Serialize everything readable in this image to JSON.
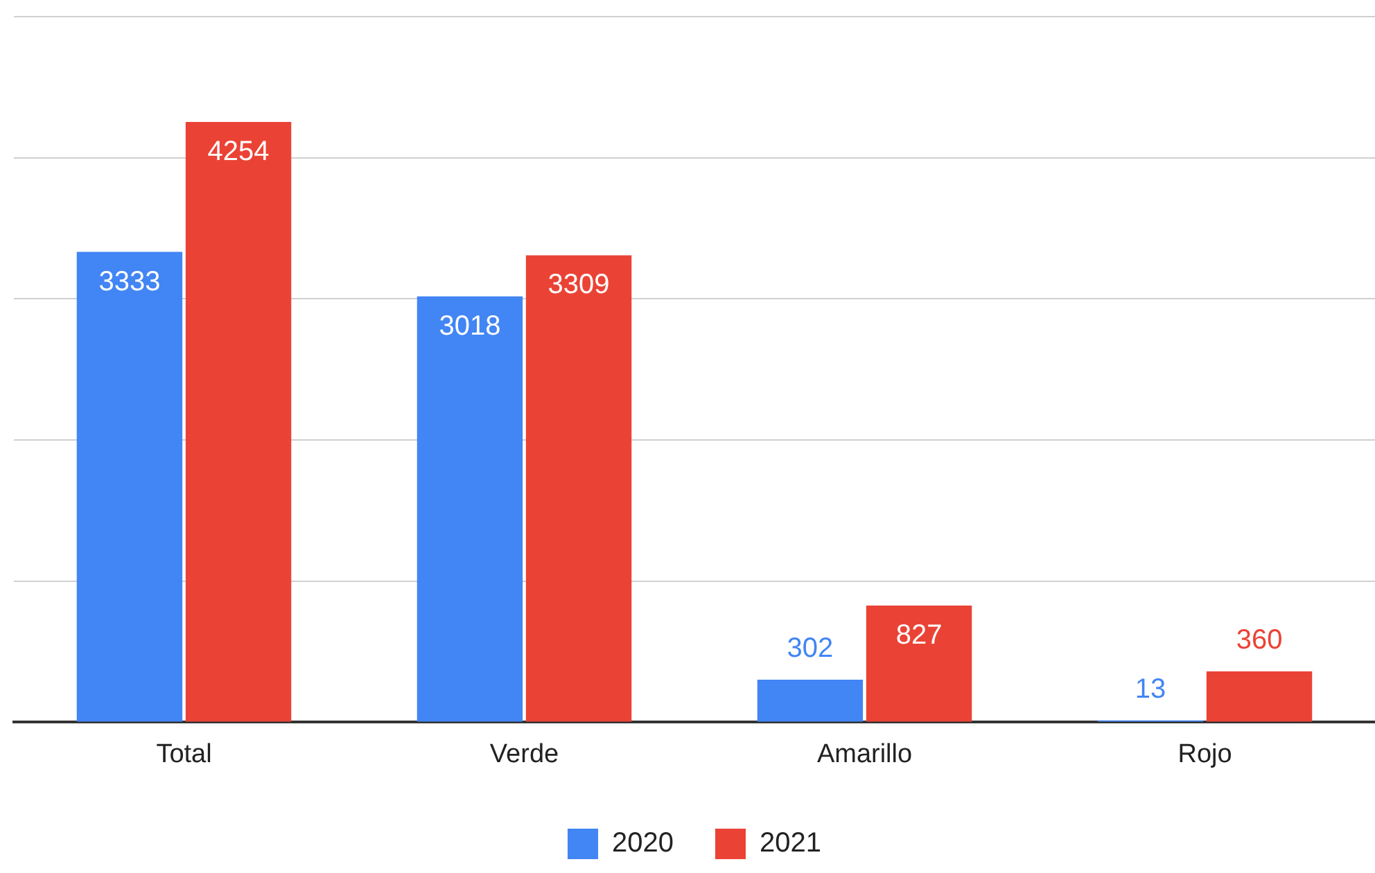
{
  "chart_data": {
    "type": "bar",
    "categories": [
      "Total",
      "Verde",
      "Amarillo",
      "Rojo"
    ],
    "series": [
      {
        "name": "2020",
        "color": "#4285f4",
        "values": [
          3333,
          3018,
          302,
          13
        ]
      },
      {
        "name": "2021",
        "color": "#ea4335",
        "values": [
          4254,
          3309,
          827,
          360
        ]
      }
    ],
    "ylim": [
      0,
      5000
    ],
    "yticks": [
      {
        "value": 0,
        "label": null
      },
      {
        "value": 1000,
        "label": null
      },
      {
        "value": 2000,
        "label": null
      },
      {
        "value": 3000,
        "label": null
      },
      {
        "value": 4000,
        "label": null
      },
      {
        "value": 5000,
        "label": null
      }
    ],
    "grid": "y",
    "legend": "bottom",
    "data_labels": true,
    "tick_labels": "x"
  }
}
